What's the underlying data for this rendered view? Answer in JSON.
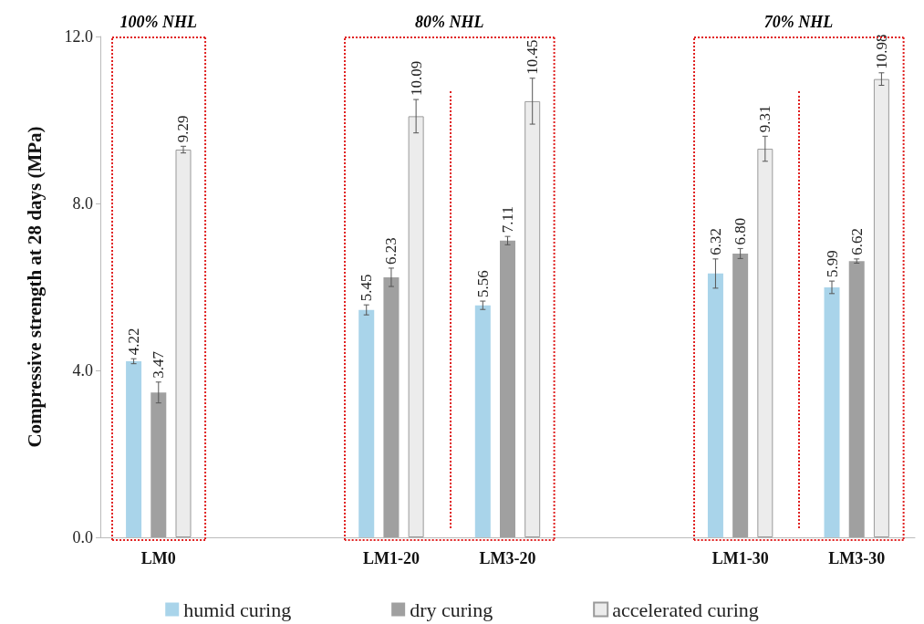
{
  "chart_data": {
    "type": "bar",
    "ylabel": "Compressive strength at 28 days (MPa)",
    "categories": [
      "LM0",
      null,
      "LM1-20",
      "LM3-20",
      null,
      "LM1-30",
      "LM3-30"
    ],
    "series": [
      {
        "name": "humid curing",
        "color": "#a9d4ea",
        "values": [
          4.22,
          null,
          5.45,
          5.56,
          null,
          6.32,
          5.99
        ],
        "value_labels": [
          "4.22",
          null,
          "5.45",
          "5.56",
          null,
          "6.32",
          "5.99"
        ],
        "errors": [
          0.06,
          null,
          0.12,
          0.1,
          null,
          0.35,
          0.15
        ]
      },
      {
        "name": "dry curing",
        "color": "#a0a0a0",
        "values": [
          3.47,
          null,
          6.23,
          7.11,
          null,
          6.8,
          6.62
        ],
        "value_labels": [
          "3.47",
          null,
          "6.23",
          "7.11",
          null,
          "6.80",
          "6.62"
        ],
        "errors": [
          0.25,
          null,
          0.22,
          0.1,
          null,
          0.12,
          0.05
        ]
      },
      {
        "name": "accelerated curing",
        "color": "#ececec",
        "values": [
          9.29,
          null,
          10.09,
          10.45,
          null,
          9.31,
          10.98
        ],
        "value_labels": [
          "9.29",
          null,
          "10.09",
          "10.45",
          null,
          "9.31",
          "10.98"
        ],
        "errors": [
          0.08,
          null,
          0.4,
          0.55,
          null,
          0.3,
          0.15
        ]
      }
    ],
    "ylim": [
      0,
      12
    ],
    "yticks": [
      {
        "value": 0,
        "label": "0.0"
      },
      {
        "value": 4,
        "label": "4.0"
      },
      {
        "value": 8,
        "label": "8.0"
      },
      {
        "value": 12,
        "label": "12.0"
      }
    ],
    "grid": false,
    "legend": "bottom",
    "annotations": [
      "100% NHL",
      "80% NHL",
      "70% NHL"
    ]
  }
}
